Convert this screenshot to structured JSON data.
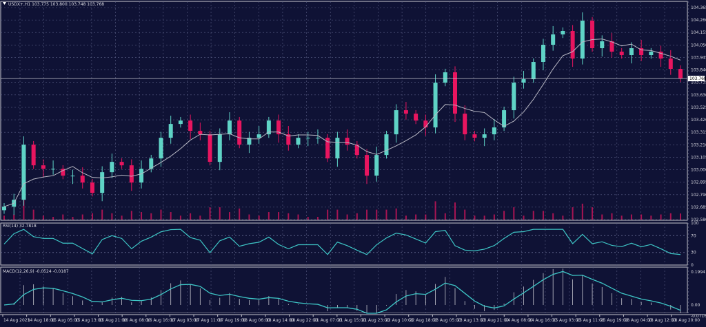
{
  "header": {
    "symbol": "USDX+,H1",
    "ohlc": "103.775 103.800 103.748 103.768"
  },
  "colors": {
    "background": "#0f1235",
    "bull": "#5fd3c6",
    "bear": "#e8155f",
    "grid": "#5a5f86",
    "ma": "#b8b8c4",
    "rsi": "#3ec6c6",
    "macd_signal": "#3ec6c6",
    "macd_hist": "#c8c8d0"
  },
  "chart_data": [
    {
      "type": "candlestick",
      "title": "",
      "y_ticks": [
        "104.365",
        "104.260",
        "104.155",
        "104.050",
        "103.945",
        "103.840",
        "103.735",
        "103.630",
        "103.525",
        "103.420",
        "103.315",
        "103.210",
        "103.105",
        "103.000",
        "102.895",
        "102.790",
        "102.685",
        "102.580"
      ],
      "ylim": [
        102.58,
        104.365
      ],
      "current_price_label": "103.768",
      "x_ticks": [
        "14 Aug 2023",
        "14 Aug 18:00",
        "15 Aug 05:00",
        "15 Aug 13:00",
        "15 Aug 21:00",
        "16 Aug 08:00",
        "16 Aug 16:00",
        "17 Aug 03:00",
        "17 Aug 11:00",
        "17 Aug 19:00",
        "18 Aug 06:00",
        "18 Aug 14:00",
        "18 Aug 22:00",
        "21 Aug 07:00",
        "21 Aug 15:00",
        "21 Aug 23:00",
        "22 Aug 10:00",
        "22 Aug 18:00",
        "23 Aug 05:00",
        "23 Aug 13:00",
        "23 Aug 21:00",
        "24 Aug 08:00",
        "24 Aug 16:00",
        "25 Aug 03:00",
        "25 Aug 11:00",
        "25 Aug 19:00",
        "28 Aug 04:00",
        "28 Aug 12:00",
        "28 Aug 20:00"
      ],
      "closes": [
        102.689,
        102.747,
        103.211,
        103.037,
        103.008,
        103.008,
        102.95,
        102.95,
        102.892,
        102.805,
        102.979,
        103.066,
        103.037,
        102.892,
        103.008,
        103.095,
        103.269,
        103.385,
        103.414,
        103.327,
        103.298,
        103.066,
        103.298,
        103.414,
        103.211,
        103.269,
        103.298,
        103.414,
        103.298,
        103.211,
        103.269,
        103.269,
        103.269,
        103.095,
        103.269,
        103.211,
        103.124,
        102.95,
        103.124,
        103.298,
        103.501,
        103.472,
        103.414,
        103.356,
        103.733,
        103.82,
        103.472,
        103.298,
        103.269,
        103.298,
        103.356,
        103.501,
        103.733,
        103.762,
        103.907,
        104.052,
        104.139,
        104.168,
        103.936,
        104.255,
        104.023,
        104.081,
        103.994,
        103.965,
        104.023,
        103.965,
        103.994,
        103.936,
        103.849,
        103.768
      ]
    },
    {
      "type": "line",
      "label": "RSI(14) 32.7818",
      "y_ticks": [
        "100",
        "70",
        "30",
        "0"
      ],
      "ylim": [
        0,
        100
      ]
    },
    {
      "type": "bar",
      "label": "MACD(12,26,9) -0.0524 -0.0187",
      "y_ticks": [
        "0.1994",
        "0.00",
        "-0.0716"
      ],
      "ylim": [
        -0.0716,
        0.1994
      ]
    }
  ]
}
